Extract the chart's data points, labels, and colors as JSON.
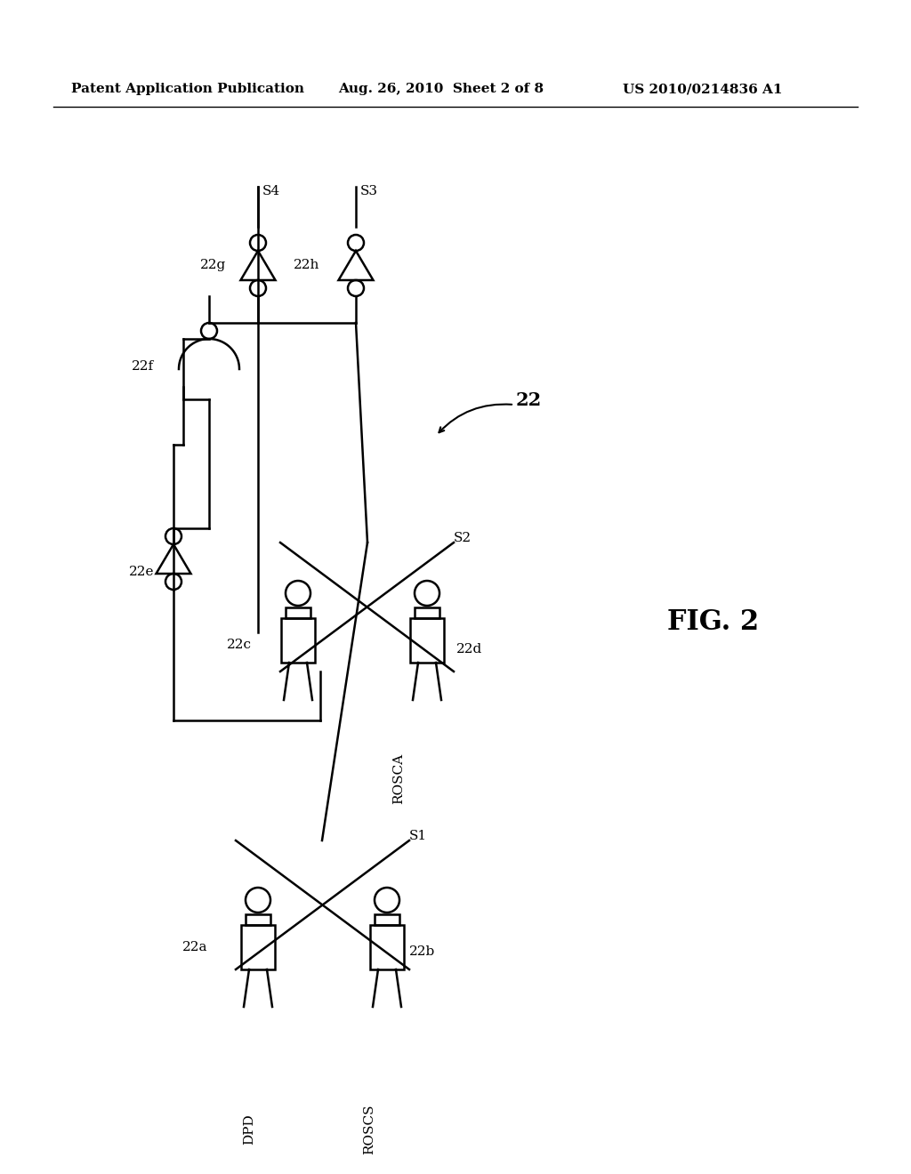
{
  "bg_color": "#ffffff",
  "title_left": "Patent Application Publication",
  "title_mid": "Aug. 26, 2010  Sheet 2 of 8",
  "title_right": "US 2010/0214836 A1",
  "fig_label": "FIG. 2",
  "header_fontsize": 11,
  "fig_label_fontsize": 22
}
